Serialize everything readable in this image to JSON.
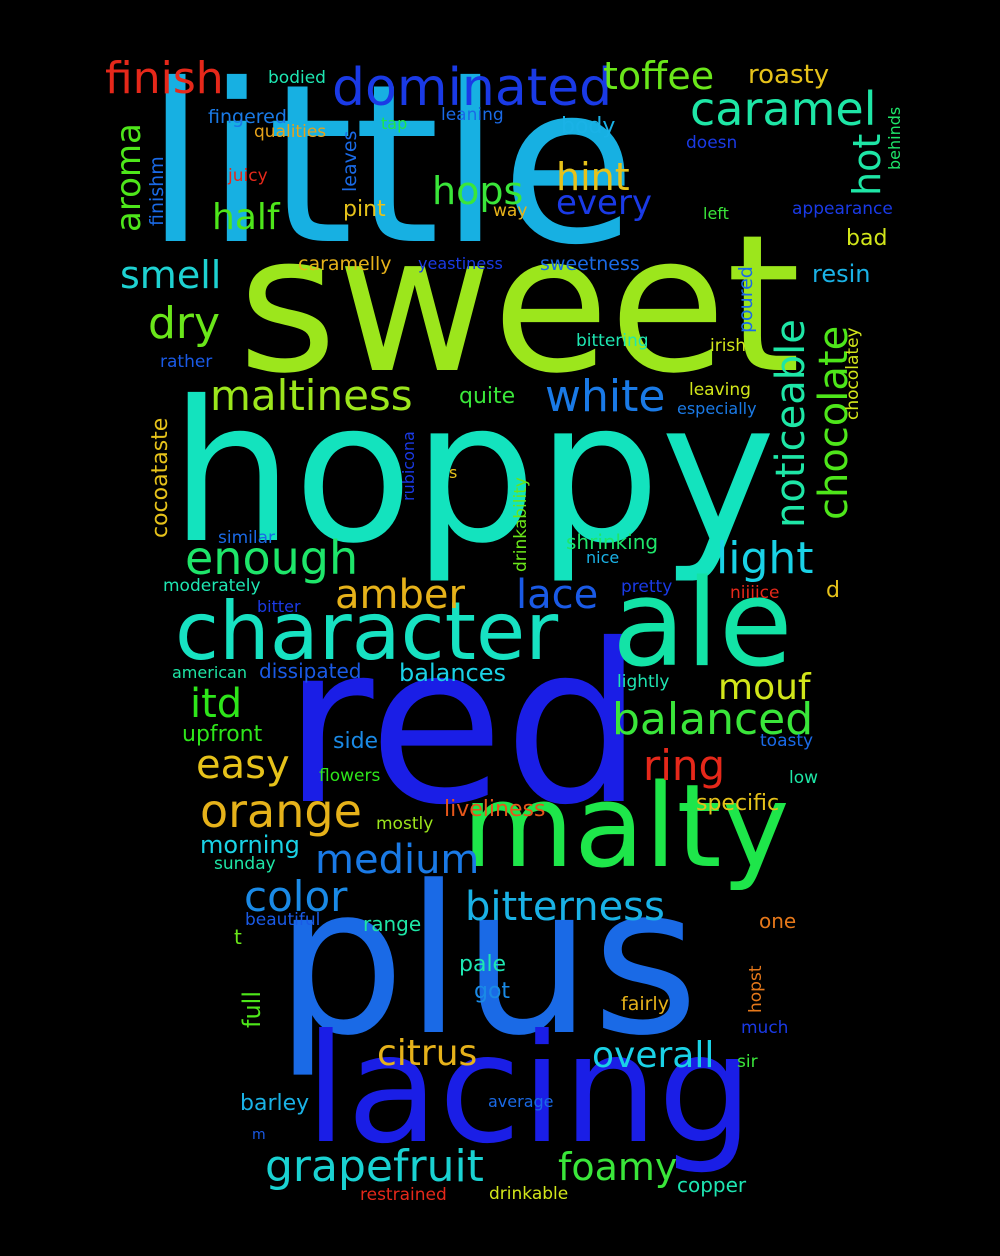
{
  "words": [
    {
      "text": "little",
      "color": "#17b0e2"
    },
    {
      "text": "sweet",
      "color": "#9ce61c"
    },
    {
      "text": "hoppy",
      "color": "#13e3be"
    },
    {
      "text": "red",
      "color": "#1a1ee6"
    },
    {
      "text": "plus",
      "color": "#1a6ae6"
    },
    {
      "text": "malty",
      "color": "#1ee64a"
    },
    {
      "text": "lacing",
      "color": "#1a1ee6"
    },
    {
      "text": "ale",
      "color": "#13e3a6"
    },
    {
      "text": "character",
      "color": "#17e2c2"
    },
    {
      "text": "dominated",
      "color": "#1a3ae6"
    },
    {
      "text": "caramel",
      "color": "#1ee6a6"
    },
    {
      "text": "finish",
      "color": "#e6281a"
    },
    {
      "text": "toffee",
      "color": "#6ae61a"
    },
    {
      "text": "roasty",
      "color": "#e6c21a"
    },
    {
      "text": "hops",
      "color": "#3ae63a"
    },
    {
      "text": "hint",
      "color": "#e6c21a"
    },
    {
      "text": "every",
      "color": "#1a3ae6"
    },
    {
      "text": "half",
      "color": "#4ee61a"
    },
    {
      "text": "smell",
      "color": "#1ed2d2"
    },
    {
      "text": "dry",
      "color": "#6ae61a"
    },
    {
      "text": "maltiness",
      "color": "#9ce61c"
    },
    {
      "text": "white",
      "color": "#1a7ae6"
    },
    {
      "text": "enough",
      "color": "#1ee66a"
    },
    {
      "text": "light",
      "color": "#1ad2e6"
    },
    {
      "text": "amber",
      "color": "#e6b21a"
    },
    {
      "text": "lace",
      "color": "#1a5ae6"
    },
    {
      "text": "itd",
      "color": "#2ee61a"
    },
    {
      "text": "mouf",
      "color": "#d2e61a"
    },
    {
      "text": "balanced",
      "color": "#3ae63a"
    },
    {
      "text": "ring",
      "color": "#e6281a"
    },
    {
      "text": "easy",
      "color": "#e6c21a"
    },
    {
      "text": "orange",
      "color": "#e6b21a"
    },
    {
      "text": "medium",
      "color": "#1a7ae6"
    },
    {
      "text": "color",
      "color": "#1a8ae6"
    },
    {
      "text": "bitterness",
      "color": "#1ab2e6"
    },
    {
      "text": "citrus",
      "color": "#e6b21a"
    },
    {
      "text": "overall",
      "color": "#1ad2e6"
    },
    {
      "text": "grapefruit",
      "color": "#1ad2d2"
    },
    {
      "text": "foamy",
      "color": "#3ae63a"
    },
    {
      "text": "aroma",
      "color": "#4ee61a"
    },
    {
      "text": "chocolate",
      "color": "#4ee61a"
    },
    {
      "text": "noticeable",
      "color": "#1ee6a6"
    },
    {
      "text": "hot",
      "color": "#1ee6a6"
    },
    {
      "text": "bodied",
      "color": "#1ee6b2"
    },
    {
      "text": "fingered",
      "color": "#1a7ae6"
    },
    {
      "text": "qualities",
      "color": "#e6a21a"
    },
    {
      "text": "tap",
      "color": "#1ee64a"
    },
    {
      "text": "leaning",
      "color": "#1a6ae6"
    },
    {
      "text": "body",
      "color": "#1ab2e6"
    },
    {
      "text": "doesn",
      "color": "#1a3ae6"
    },
    {
      "text": "juicy",
      "color": "#e6281a"
    },
    {
      "text": "way",
      "color": "#e6b21a"
    },
    {
      "text": "left",
      "color": "#3ae63a"
    },
    {
      "text": "appearance",
      "color": "#1a3ae6"
    },
    {
      "text": "pint",
      "color": "#e6c21a"
    },
    {
      "text": "bad",
      "color": "#d2e61a"
    },
    {
      "text": "caramelly",
      "color": "#e6b21a"
    },
    {
      "text": "yeastiness",
      "color": "#1a3ae6"
    },
    {
      "text": "sweetness",
      "color": "#1a6ae6"
    },
    {
      "text": "resin",
      "color": "#1ab2e6"
    },
    {
      "text": "rather",
      "color": "#1a5ae6"
    },
    {
      "text": "bittering",
      "color": "#1ee6b2"
    },
    {
      "text": "irish",
      "color": "#d2e61a"
    },
    {
      "text": "quite",
      "color": "#3ae63a"
    },
    {
      "text": "leaving",
      "color": "#d2e61a"
    },
    {
      "text": "especially",
      "color": "#1a7ae6"
    },
    {
      "text": "s",
      "color": "#e6c21a"
    },
    {
      "text": "similar",
      "color": "#1a6ae6"
    },
    {
      "text": "shrinking",
      "color": "#1ee66a"
    },
    {
      "text": "nice",
      "color": "#1ab2e6"
    },
    {
      "text": "moderately",
      "color": "#1ee6b2"
    },
    {
      "text": "pretty",
      "color": "#1a3ae6"
    },
    {
      "text": "bitter",
      "color": "#1a3ae6"
    },
    {
      "text": "niiiice",
      "color": "#e6281a"
    },
    {
      "text": "d",
      "color": "#e6c21a"
    },
    {
      "text": "american",
      "color": "#1ee6a6"
    },
    {
      "text": "dissipated",
      "color": "#1a5ae6"
    },
    {
      "text": "balances",
      "color": "#1ad2e6"
    },
    {
      "text": "lightly",
      "color": "#1ee6b2"
    },
    {
      "text": "upfront",
      "color": "#2ee61a"
    },
    {
      "text": "side",
      "color": "#1a8ae6"
    },
    {
      "text": "toasty",
      "color": "#1a6ae6"
    },
    {
      "text": "flowers",
      "color": "#2ee61a"
    },
    {
      "text": "low",
      "color": "#1ee6a6"
    },
    {
      "text": "liveliness",
      "color": "#e6561a"
    },
    {
      "text": "mostly",
      "color": "#9ce61c"
    },
    {
      "text": "specific",
      "color": "#e6c21a"
    },
    {
      "text": "morning",
      "color": "#1ad2e6"
    },
    {
      "text": "sunday",
      "color": "#1ee6a6"
    },
    {
      "text": "beautiful",
      "color": "#1a5ae6"
    },
    {
      "text": "range",
      "color": "#1ee6a6"
    },
    {
      "text": "one",
      "color": "#e6781a"
    },
    {
      "text": "t",
      "color": "#6ae61a"
    },
    {
      "text": "pale",
      "color": "#1ee6b2"
    },
    {
      "text": "got",
      "color": "#1a8ae6"
    },
    {
      "text": "fairly",
      "color": "#e6b21a"
    },
    {
      "text": "much",
      "color": "#1a3ae6"
    },
    {
      "text": "sir",
      "color": "#3ae63a"
    },
    {
      "text": "barley",
      "color": "#1ab2e6"
    },
    {
      "text": "average",
      "color": "#1a6ae6"
    },
    {
      "text": "m",
      "color": "#1a5ae6"
    },
    {
      "text": "copper",
      "color": "#1ee6b2"
    },
    {
      "text": "restrained",
      "color": "#e6281a"
    },
    {
      "text": "drinkable",
      "color": "#d2e61a"
    },
    {
      "text": "finishm",
      "color": "#1a6ae6"
    },
    {
      "text": "leaves",
      "color": "#1a6ae6"
    },
    {
      "text": "cocoataste",
      "color": "#e6c21a"
    },
    {
      "text": "rubicona",
      "color": "#1a3ae6"
    },
    {
      "text": "drinkability",
      "color": "#6ae61a"
    },
    {
      "text": "poured",
      "color": "#1a6ae6"
    },
    {
      "text": "chocolatey",
      "color": "#d2e61a"
    },
    {
      "text": "behinds",
      "color": "#1ee66a"
    },
    {
      "text": "full",
      "color": "#4ee61a"
    },
    {
      "text": "hopst",
      "color": "#e6781a"
    }
  ]
}
